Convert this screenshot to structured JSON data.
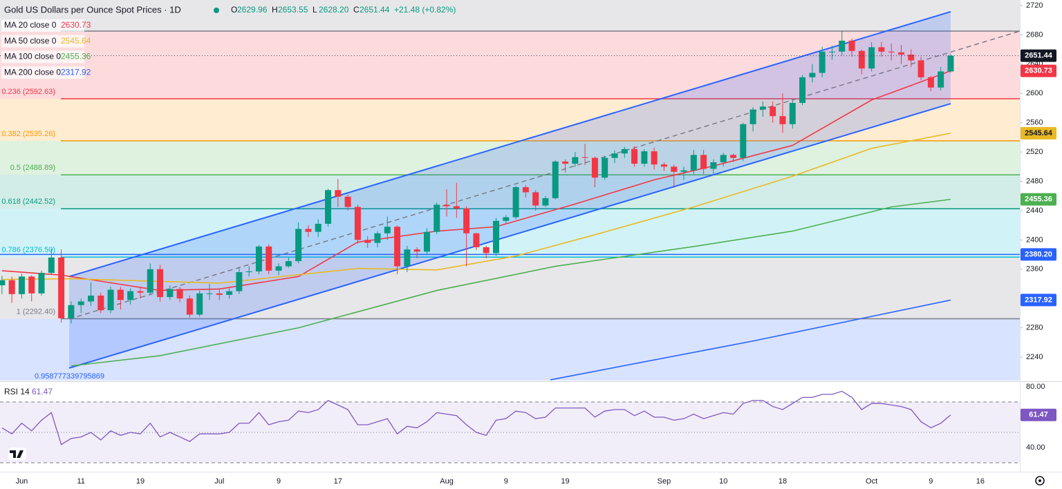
{
  "header": {
    "title": "Gold US Dollars per Ounce Spot Prices · 1D",
    "ohlc": [
      {
        "key": "O",
        "value": "2629.96"
      },
      {
        "key": "H",
        "value": "2653.55"
      },
      {
        "key": "L",
        "value": "2628.20"
      },
      {
        "key": "C",
        "value": "2651.44"
      }
    ],
    "change": "+21.48 (+0.82%)"
  },
  "chart_data": {
    "type": "candlestick",
    "title": "Gold US Dollars per Ounce Spot Prices · 1D",
    "up_color": "#089981",
    "down_color": "#f23645",
    "candles": {
      "open": [
        2338,
        2345,
        2326,
        2350,
        2327,
        2355,
        2376,
        2293,
        2311,
        2316,
        2324,
        2304,
        2332,
        2318,
        2330,
        2328,
        2360,
        2322,
        2333,
        2320,
        2298,
        2327,
        2327,
        2325,
        2330,
        2356,
        2357,
        2391,
        2358,
        2364,
        2371,
        2415,
        2411,
        2422,
        2468,
        2459,
        2445,
        2400,
        2396,
        2409,
        2418,
        2364,
        2387,
        2384,
        2411,
        2448,
        2446,
        2443,
        2409,
        2390,
        2382,
        2426,
        2431,
        2472,
        2465,
        2447,
        2457,
        2507,
        2504,
        2513,
        2512,
        2485,
        2512,
        2518,
        2524,
        2504,
        2521,
        2503,
        2500,
        2493,
        2495,
        2516,
        2497,
        2506,
        2516,
        2512,
        2558,
        2578,
        2582,
        2569,
        2558,
        2587,
        2622,
        2628,
        2657,
        2657,
        2672,
        2658,
        2634,
        2663,
        2657,
        2656,
        2653,
        2645,
        2622,
        2608,
        2629.96
      ],
      "high": [
        2351,
        2350,
        2354,
        2352,
        2358,
        2388,
        2387,
        2316,
        2320,
        2342,
        2328,
        2336,
        2336,
        2334,
        2336,
        2368,
        2366,
        2338,
        2336,
        2324,
        2331,
        2340,
        2334,
        2334,
        2362,
        2364,
        2393,
        2394,
        2368,
        2376,
        2424,
        2420,
        2428,
        2470,
        2483,
        2462,
        2448,
        2405,
        2412,
        2432,
        2420,
        2392,
        2390,
        2416,
        2451,
        2469,
        2478,
        2446,
        2410,
        2392,
        2430,
        2434,
        2474,
        2475,
        2468,
        2460,
        2509,
        2510,
        2520,
        2531,
        2514,
        2515,
        2522,
        2527,
        2528,
        2524,
        2526,
        2506,
        2503,
        2500,
        2523,
        2523,
        2510,
        2519,
        2518,
        2560,
        2581,
        2589,
        2589,
        2600,
        2590,
        2625,
        2640,
        2664,
        2665,
        2685,
        2675,
        2660,
        2670,
        2670,
        2668,
        2666,
        2660,
        2650,
        2624,
        2636,
        2653.55
      ],
      "low": [
        2326,
        2314,
        2320,
        2316,
        2324,
        2352,
        2287,
        2286,
        2300,
        2310,
        2300,
        2300,
        2305,
        2312,
        2320,
        2325,
        2316,
        2318,
        2315,
        2294,
        2295,
        2318,
        2318,
        2320,
        2326,
        2350,
        2353,
        2353,
        2352,
        2362,
        2368,
        2404,
        2404,
        2418,
        2445,
        2440,
        2395,
        2389,
        2390,
        2400,
        2353,
        2356,
        2375,
        2380,
        2408,
        2432,
        2430,
        2364,
        2386,
        2375,
        2378,
        2422,
        2428,
        2458,
        2440,
        2445,
        2455,
        2492,
        2500,
        2502,
        2472,
        2482,
        2505,
        2512,
        2500,
        2500,
        2496,
        2494,
        2471,
        2482,
        2490,
        2490,
        2490,
        2500,
        2506,
        2508,
        2548,
        2568,
        2560,
        2546,
        2552,
        2584,
        2615,
        2622,
        2646,
        2652,
        2650,
        2626,
        2630,
        2650,
        2645,
        2640,
        2636,
        2618,
        2603,
        2604,
        2628.2
      ],
      "close": [
        2345,
        2326,
        2350,
        2327,
        2355,
        2376,
        2293,
        2311,
        2316,
        2324,
        2304,
        2332,
        2318,
        2330,
        2328,
        2360,
        2322,
        2333,
        2320,
        2298,
        2327,
        2327,
        2325,
        2330,
        2356,
        2357,
        2391,
        2358,
        2364,
        2371,
        2415,
        2411,
        2422,
        2468,
        2459,
        2445,
        2400,
        2396,
        2409,
        2418,
        2364,
        2387,
        2384,
        2411,
        2448,
        2446,
        2443,
        2409,
        2390,
        2382,
        2426,
        2431,
        2472,
        2465,
        2447,
        2457,
        2507,
        2504,
        2513,
        2512,
        2485,
        2512,
        2518,
        2524,
        2504,
        2521,
        2503,
        2500,
        2493,
        2495,
        2516,
        2497,
        2506,
        2516,
        2512,
        2558,
        2578,
        2582,
        2569,
        2558,
        2587,
        2622,
        2628,
        2657,
        2657,
        2672,
        2658,
        2634,
        2663,
        2657,
        2656,
        2653,
        2645,
        2622,
        2608,
        2630,
        2651.44
      ]
    },
    "xticks": [
      {
        "value": 2,
        "label": "Jun"
      },
      {
        "value": 8,
        "label": "11"
      },
      {
        "value": 14,
        "label": "19"
      },
      {
        "value": 22,
        "label": "Jul"
      },
      {
        "value": 28,
        "label": "9"
      },
      {
        "value": 34,
        "label": "17"
      },
      {
        "value": 45,
        "label": "Aug"
      },
      {
        "value": 51,
        "label": "9"
      },
      {
        "value": 57,
        "label": "19"
      },
      {
        "value": 67,
        "label": "Sep"
      },
      {
        "value": 73,
        "label": "10"
      },
      {
        "value": 79,
        "label": "18"
      },
      {
        "value": 88,
        "label": "Oct"
      },
      {
        "value": 94,
        "label": "9"
      },
      {
        "value": 99,
        "label": "16"
      }
    ],
    "xlim": [
      -0.2,
      103
    ],
    "ylim": [
      2208,
      2727.5
    ],
    "yticks": [
      2240,
      2280,
      2320,
      2360,
      2400,
      2440,
      2480,
      2520,
      2560,
      2600,
      2640,
      2680,
      2720
    ],
    "moving_averages": [
      {
        "name": "MA 20 close 0",
        "color": "#f23645",
        "x": [
          0,
          6,
          16,
          22,
          30,
          36,
          44,
          50,
          58,
          66,
          72,
          80,
          88,
          96
        ],
        "values": [
          2358,
          2352,
          2331,
          2333,
          2350,
          2397,
          2412,
          2418,
          2449,
          2482,
          2501,
          2529,
          2591,
          2630.73
        ]
      },
      {
        "name": "MA 50 close 0",
        "color": "#e8b923",
        "x": [
          0,
          7,
          22,
          36,
          44,
          52,
          60,
          70,
          80,
          88,
          96
        ],
        "values": [
          2346,
          2347,
          2341,
          2361,
          2359,
          2378,
          2407,
          2445,
          2487,
          2525,
          2545.64
        ]
      },
      {
        "name": "MA 100 close 0",
        "color": "#4caf50",
        "x": [
          7,
          16,
          30,
          44,
          56,
          70,
          80,
          90,
          96
        ],
        "values": [
          2228,
          2242,
          2280,
          2331,
          2364,
          2391,
          2412,
          2445,
          2455.36
        ]
      },
      {
        "name": "MA 200 close 0",
        "color": "#2962ff",
        "x": [
          55.5,
          76,
          96
        ],
        "values": [
          2209,
          2262,
          2317.92
        ]
      }
    ],
    "fib_levels": [
      {
        "value": 2685.13,
        "color": "#787b86"
      },
      {
        "value": 2592.63,
        "label": "0.236 (2592.63)",
        "color": "#f23645"
      },
      {
        "value": 2535.26,
        "label": "0.382 (2535.26)",
        "color": "#ff9800"
      },
      {
        "value": 2488.89,
        "label": "0.5 (2488.89)",
        "color": "#4caf50"
      },
      {
        "value": 2442.52,
        "label": "0.618 (2442.52)",
        "color": "#089981"
      },
      {
        "value": 2376.5,
        "label": "0.786 (2376.50)",
        "color": "#00bcd4"
      },
      {
        "value": 2292.4,
        "label": "1 (2292.40)",
        "color": "#787b86"
      }
    ],
    "fib_extension_color": "#2962ff",
    "annotation": "0.958777339795869",
    "channel": {
      "color": "#2962ff",
      "x": [
        6.8,
        96
      ],
      "upper": [
        2350,
        2711.5
      ],
      "lower": [
        2225,
        2586
      ],
      "mid_x": [
        6.8,
        103
      ],
      "mid": [
        2292,
        2685
      ]
    },
    "horizontal_line": {
      "value": 2380.2,
      "label": "2380.20",
      "color": "#2962ff"
    },
    "rsi": {
      "name": "RSI 14",
      "color": "#7e57c2",
      "ylim": [
        24.1,
        81.8
      ],
      "yticks": [
        {
          "value": 80,
          "label": "80.00"
        },
        {
          "value": 40,
          "label": "40.00"
        }
      ],
      "levels": [
        70,
        50,
        30
      ],
      "values": [
        53,
        49,
        56,
        51,
        58,
        63,
        42,
        46,
        47,
        50,
        45,
        51,
        48,
        50,
        49,
        56,
        47,
        50,
        47,
        44,
        49,
        49,
        49,
        50,
        56,
        56,
        63,
        55,
        57,
        58,
        64,
        63,
        65,
        71,
        68,
        65,
        55,
        55,
        57,
        59,
        49,
        54,
        53,
        57,
        63,
        62,
        61,
        55,
        50,
        48,
        58,
        59,
        64,
        63,
        59,
        60,
        66,
        66,
        66,
        66,
        60,
        64,
        65,
        65,
        61,
        64,
        60,
        60,
        58,
        59,
        62,
        59,
        61,
        63,
        62,
        69,
        71,
        71,
        67,
        65,
        69,
        73,
        73,
        75,
        75,
        77,
        73,
        65,
        69,
        69,
        68,
        67,
        65,
        57,
        53,
        56,
        61.47
      ]
    }
  }
}
